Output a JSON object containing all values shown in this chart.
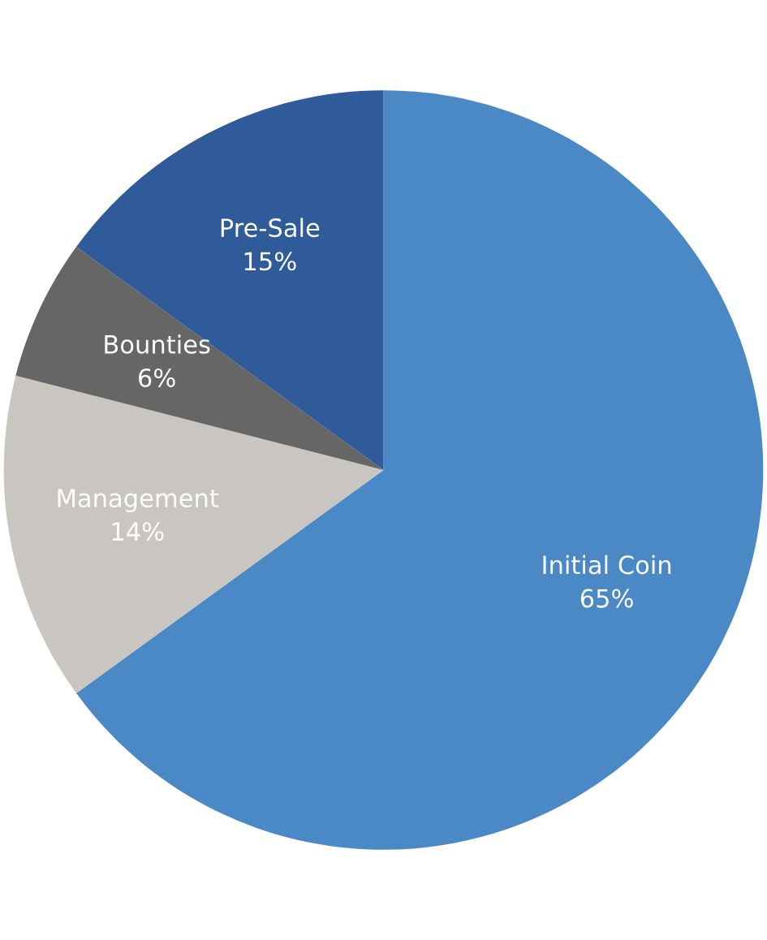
{
  "chart_data": {
    "type": "pie",
    "categories": [
      "Initial Coin",
      "Management",
      "Bounties",
      "Pre-Sale"
    ],
    "values": [
      65,
      14,
      6,
      15
    ],
    "value_labels": [
      "65%",
      "14%",
      "6%",
      "15%"
    ],
    "colors": [
      "#4a88c6",
      "#c9c5c0",
      "#666666",
      "#2f5b9a"
    ]
  }
}
